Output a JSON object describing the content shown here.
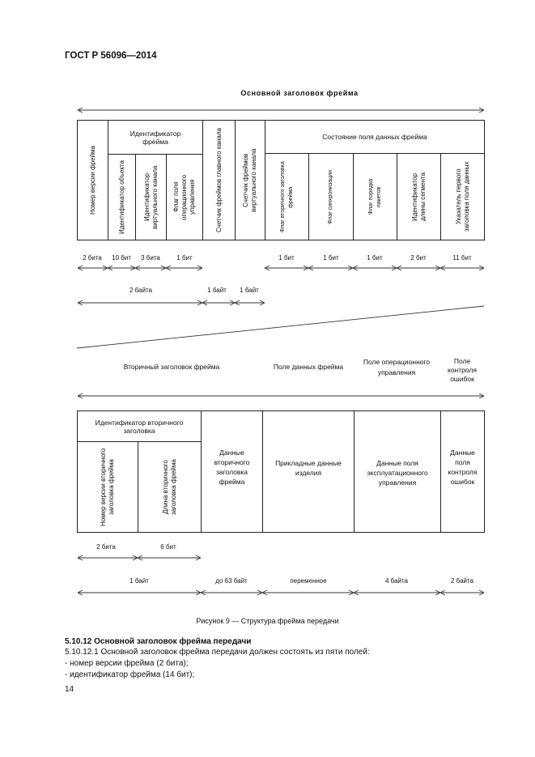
{
  "header": {
    "standard": "ГОСТ Р 56096—2014"
  },
  "figure": {
    "top_title": "Основной заголовок фрейма",
    "top_table": {
      "version": "Номер версии фрейма",
      "frame_id": "Идентификатор фрейма",
      "object_id": "Идентификатор объекта",
      "vc_id": "Идентификатор виртуального канала",
      "ocf_flag": "Флаг поля операционного управления",
      "master_counter": "Счетчик фреймов главного канала",
      "vc_counter": "Счетчик фреймов виртуального канала",
      "status": "Состояние поля данных фрейма",
      "sec_hdr_flag": "Флаг вторичного заголовка фрейма",
      "sync_flag": "Флаг синхронизации",
      "order_flag": "Флаг порядка пакетов",
      "seg_len_id": "Идентификатор длины сегмента",
      "first_hdr_ptr": "Указатель первого заголовка поля данных"
    },
    "top_bits": [
      "2 бита",
      "10 бит",
      "3 бита",
      "1 бит",
      "1 бит",
      "1 бит",
      "1 бит",
      "2 бит",
      "11 бит"
    ],
    "top_bytes": [
      "2 байта",
      "1 байт",
      "1 байт"
    ],
    "lower_headers": {
      "secondary": "Вторичный заголовок фрейма",
      "data_field": "Поле данных фрейма",
      "ocf": "Поле операционного управления",
      "fecf": "Поле контроля ошибок"
    },
    "lower_table": {
      "sec_id": "Идентификатор вторичного заголовка",
      "sec_version": "Номер версии вторичного заголовка фрейма",
      "sec_length": "Длина вторичного заголовка фрейма",
      "sec_data": "Данные вторичного заголовка фрейма",
      "app_data": "Прикладные данные изделия",
      "ocf_data": "Данные поля эксплуатационного управления",
      "fecf_data": "Данные поля контроля ошибок"
    },
    "lower_bits": [
      "2 бита",
      "6 бит"
    ],
    "lower_bytes": [
      "1 байт",
      "до 63 байт",
      "переменное",
      "4 байта",
      "2 байта"
    ],
    "caption": "Рисунок 9 — Структура фрейма передачи"
  },
  "section": {
    "heading": "5.10.12 Основной заголовок фрейма передачи",
    "lines": [
      "5.10.12.1 Основной заголовок фрейма передачи должен состоять из пяти полей:",
      "- номер версии фрейма (2 бита);",
      "- идентификатор фрейма (14 бит);"
    ]
  },
  "page_number": "14"
}
